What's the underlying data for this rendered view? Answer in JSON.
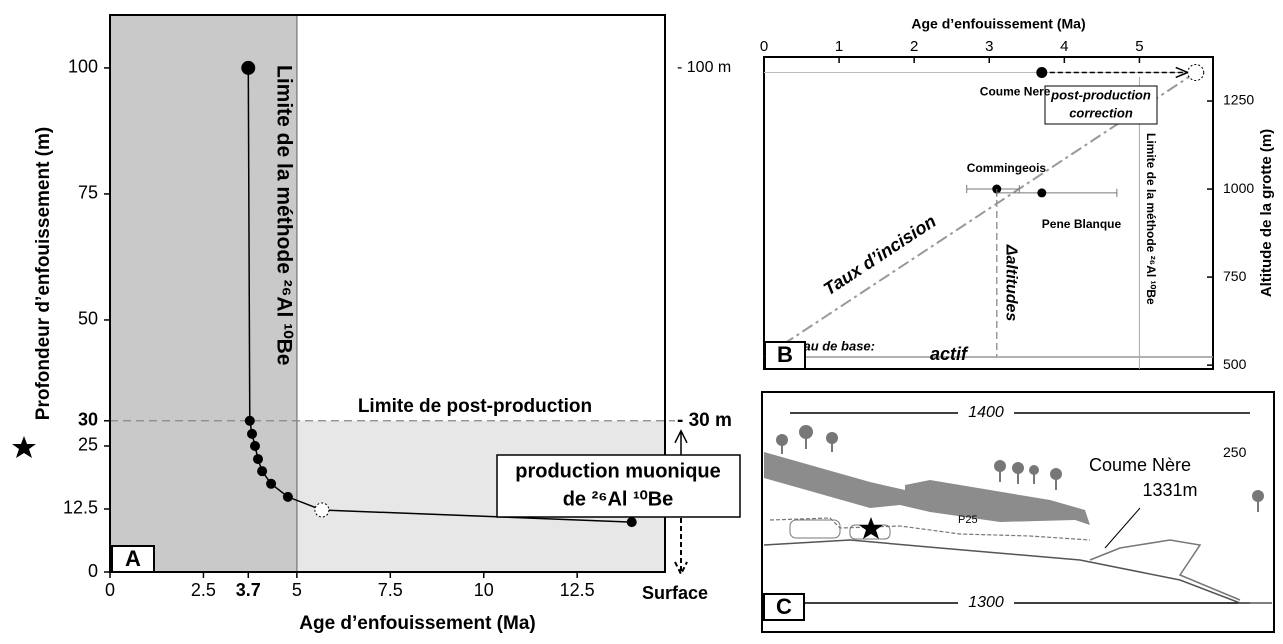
{
  "chart_data": [
    {
      "type": "line",
      "panel": "A",
      "xlabel": "Age d’enfouissement (Ma)",
      "ylabel": "Profondeur d’enfouissement (m)",
      "xlim": [
        0,
        14.85
      ],
      "xticks": [
        0,
        2.5,
        3.7,
        5,
        7.5,
        10,
        12.5
      ],
      "ylim": [
        0,
        110.5
      ],
      "yticks": [
        0,
        12.5,
        25,
        30,
        50,
        75,
        100
      ],
      "series": [
        {
          "color": "#000000",
          "x": [
            3.7,
            3.74,
            3.8,
            3.88,
            3.96,
            4.07,
            4.31,
            4.76,
            5.67,
            13.96
          ],
          "values": [
            100,
            30,
            27.4,
            25,
            22.4,
            20,
            17.5,
            14.9,
            12.3,
            9.9
          ],
          "marker_styles": [
            "large",
            "filled",
            "filled",
            "filled",
            "filled",
            "filled",
            "filled",
            "filled",
            "open-dashed",
            "filled"
          ]
        }
      ],
      "vline": {
        "x": 5,
        "label": "Limite de la méthode ²⁶Al ¹⁰Be"
      },
      "hline": {
        "y": 30,
        "label": "Limite de post-production"
      },
      "right_labels": [
        {
          "y": 100,
          "label": "- 100 m"
        },
        {
          "y": 30,
          "label": "- 30 m"
        }
      ],
      "surface_label": "Surface",
      "annotation": [
        "production muonique",
        "de ²⁶Al ¹⁰Be"
      ]
    },
    {
      "type": "scatter",
      "panel": "B",
      "xlabel": "Age d’enfouissement (Ma)",
      "ylabel": "Altitude de la grotte (m)",
      "xlim": [
        0,
        5.98
      ],
      "xticks": [
        0,
        1,
        2,
        3,
        4,
        5
      ],
      "ylim": [
        489,
        1375
      ],
      "yticks": [
        250,
        500,
        750,
        1000,
        1250
      ],
      "points": [
        {
          "name": "Coume Nere",
          "x": 3.7,
          "y": 1331
        },
        {
          "name": "Commingeois",
          "x": 3.1,
          "y": 1000,
          "xerr": [
            2.7,
            3.4
          ]
        },
        {
          "name": "Pene Blanque",
          "x": 3.7,
          "y": 989,
          "xerr": [
            3.1,
            4.7
          ]
        }
      ],
      "corrected_point": {
        "x": 5.75,
        "y": 1331,
        "label": [
          "post-production",
          "correction"
        ]
      },
      "base_level": {
        "y": 523,
        "label": "Niveau de base:",
        "sublabel": "actif"
      },
      "incision_label": "Taux d’incision",
      "altitude_label": "Δaltitudes",
      "vline": {
        "x": 5,
        "label": "Limite de la méthode ²⁶Al ¹⁰Be"
      }
    }
  ],
  "cross_section": {
    "panel": "C",
    "contours": [
      "1400",
      "1300"
    ],
    "site": "Coume Nère",
    "elevation": "1331m",
    "shaft": "P25"
  }
}
